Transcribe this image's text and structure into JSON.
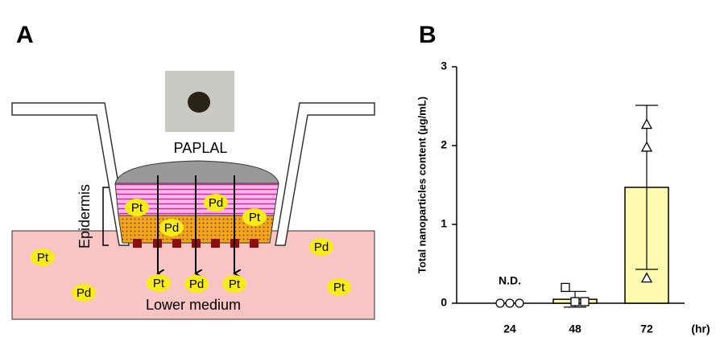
{
  "panels": {
    "a": {
      "label": "A",
      "photo_label": "PAPLAL",
      "layer_label": "Epidermis",
      "medium_label": "Lower medium",
      "particles": [
        "Pt",
        "Pd",
        "Pt",
        "Pd",
        "Pt",
        "Pd",
        "Pd",
        "Pt",
        "Pd",
        "Pt",
        "Pt"
      ]
    },
    "b": {
      "label": "B"
    }
  },
  "chart_data": {
    "type": "bar",
    "ylabel": "Total nanoparticles content (μg/mL)",
    "x_unit": "(hr)",
    "categories": [
      "24",
      "48",
      "72"
    ],
    "values": [
      0,
      0.05,
      1.47
    ],
    "errors": [
      0,
      0.1,
      1.04
    ],
    "points": [
      [
        0,
        0,
        0
      ],
      [
        0.2,
        0.02,
        0.02
      ],
      [
        2.27,
        1.98,
        0.32
      ]
    ],
    "annotation": "N.D.",
    "color": "#fffbb0",
    "ylim": [
      0,
      3
    ],
    "yticks": [
      0,
      1,
      2,
      3
    ]
  }
}
